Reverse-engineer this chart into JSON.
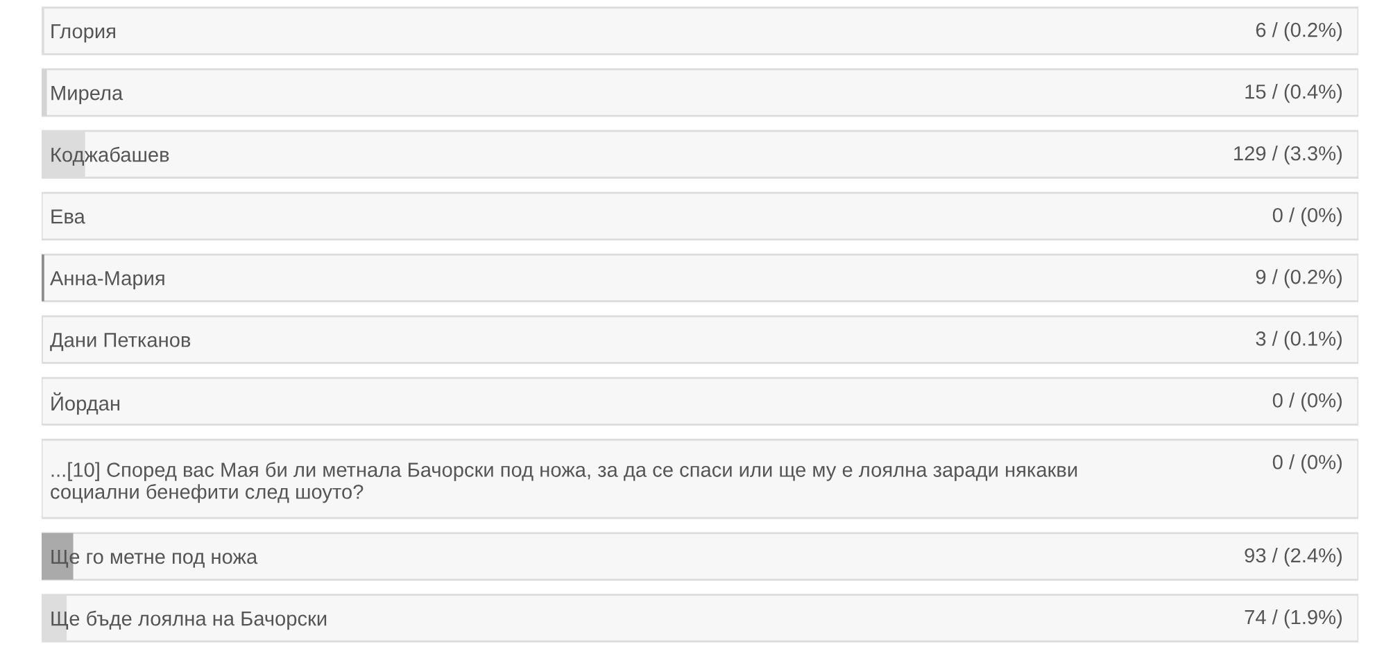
{
  "chart_data": {
    "type": "bar",
    "orientation": "horizontal",
    "categories": [
      "Глория",
      "Мирела",
      "Коджабашев",
      "Ева",
      "Анна-Мария",
      "Дани Петканов",
      "Йордан",
      "...[10] Според вас Мая би ли метнала Бачорски под ножа, за да се спаси или ще му е лоялна заради някакви\nсоциални бенефити след шоуто?",
      "Ще го метне под ножа",
      "Ще бъде лоялна на Бачорски"
    ],
    "values": [
      0.2,
      0.4,
      3.3,
      0,
      0.2,
      0.1,
      0,
      0,
      2.4,
      1.9
    ],
    "value_labels": [
      "6 / (0.2%)",
      "15 / (0.4%)",
      "129 / (3.3%)",
      "0 / (0%)",
      "9 / (0.2%)",
      "3 / (0.1%)",
      "0 / (0%)",
      "0 / (0%)",
      "93 / (2.4%)",
      "74 / (1.9%)"
    ],
    "colors": [
      "#dddddd",
      "#d4d4d4",
      "#dcdcdc",
      "#dddddd",
      "#8c8c8c",
      "#dddddd",
      "#dddddd",
      "#dddddd",
      "#aaaaaa",
      "#dddddd"
    ],
    "xlim": [
      0,
      100
    ],
    "tick_labels": "y"
  }
}
